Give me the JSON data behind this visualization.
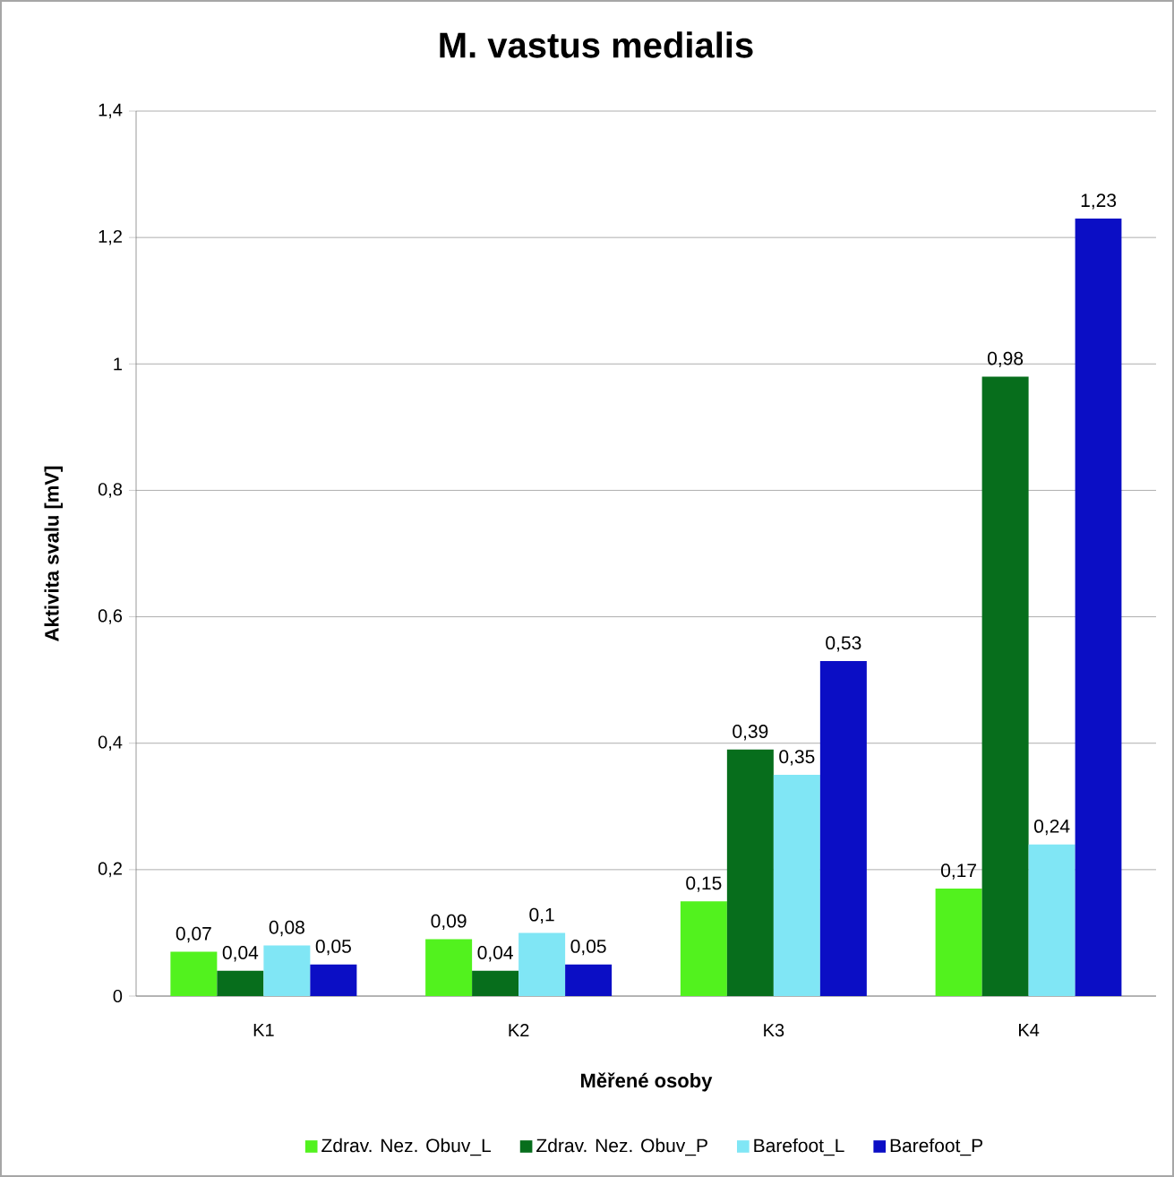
{
  "chart_data": {
    "type": "bar",
    "title": "M. vastus medialis",
    "xlabel": "Měřené osoby",
    "ylabel": "Aktivita svalu [mV]",
    "categories": [
      "K1",
      "K2",
      "K3",
      "K4"
    ],
    "series": [
      {
        "name": "Zdrav. Nez. Obuv_L",
        "color": "#52f21e",
        "values": [
          0.07,
          0.09,
          0.15,
          0.17
        ],
        "value_labels": [
          "0,07",
          "0,09",
          "0,15",
          "0,17"
        ]
      },
      {
        "name": "Zdrav. Nez. Obuv_P",
        "color": "#076e1c",
        "values": [
          0.04,
          0.04,
          0.39,
          0.98
        ],
        "value_labels": [
          "0,04",
          "0,04",
          "0,39",
          "0,98"
        ]
      },
      {
        "name": "Barefoot_L",
        "color": "#80e6f5",
        "values": [
          0.08,
          0.1,
          0.35,
          0.24
        ],
        "value_labels": [
          "0,08",
          "0,1",
          "0,35",
          "0,24"
        ]
      },
      {
        "name": "Barefoot_P",
        "color": "#0b0ec5",
        "values": [
          0.05,
          0.05,
          0.53,
          1.23
        ],
        "value_labels": [
          "0,05",
          "0,05",
          "0,53",
          "1,23"
        ]
      }
    ],
    "ylim": [
      0,
      1.4
    ],
    "yticks": [
      0,
      {
        "value": 0.2,
        "label": "0,2"
      },
      {
        "value": 0.4,
        "label": "0,4"
      },
      {
        "value": 0.6,
        "label": "0,6"
      },
      {
        "value": 0.8,
        "label": "0,8"
      },
      1,
      {
        "value": 1.2,
        "label": "1,2"
      },
      {
        "value": 1.4,
        "label": "1,4"
      }
    ],
    "grid": "y",
    "legend": "bottom"
  }
}
